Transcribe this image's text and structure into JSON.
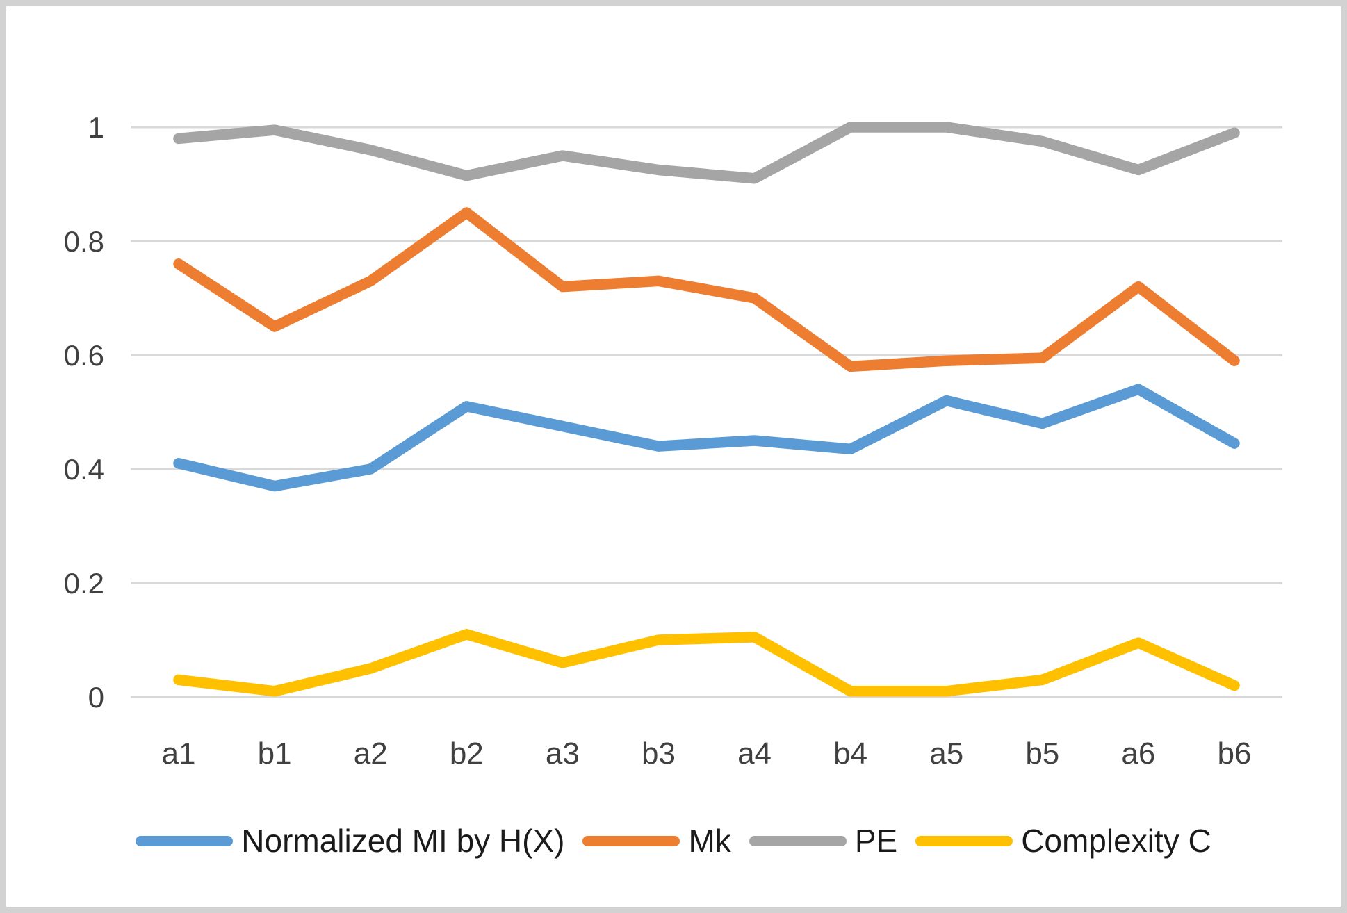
{
  "frame": {
    "border_color": "#d2d2d2",
    "background": "#ffffff"
  },
  "chart_data": {
    "type": "line",
    "title": "",
    "xlabel": "",
    "ylabel": "",
    "categories": [
      "a1",
      "b1",
      "a2",
      "b2",
      "a3",
      "b3",
      "a4",
      "b4",
      "a5",
      "b5",
      "a6",
      "b6"
    ],
    "series": [
      {
        "name": "Normalized MI by H(X)",
        "color": "#5B9BD5",
        "values": [
          0.41,
          0.37,
          0.4,
          0.51,
          0.475,
          0.44,
          0.45,
          0.435,
          0.52,
          0.48,
          0.54,
          0.445
        ]
      },
      {
        "name": "Mk",
        "color": "#ED7D31",
        "values": [
          0.76,
          0.65,
          0.73,
          0.85,
          0.72,
          0.73,
          0.7,
          0.58,
          0.59,
          0.595,
          0.72,
          0.59
        ]
      },
      {
        "name": "PE",
        "color": "#A5A5A5",
        "values": [
          0.98,
          0.995,
          0.96,
          0.915,
          0.95,
          0.925,
          0.91,
          1.0,
          1.0,
          0.975,
          0.925,
          0.99
        ]
      },
      {
        "name": "Complexity C",
        "color": "#FFC000",
        "values": [
          0.03,
          0.01,
          0.05,
          0.11,
          0.06,
          0.1,
          0.105,
          0.01,
          0.01,
          0.03,
          0.095,
          0.02
        ]
      }
    ],
    "ylim": [
      0,
      1
    ],
    "y_ticks": [
      0,
      0.2,
      0.4,
      0.6,
      0.8,
      1
    ],
    "y_tick_labels": [
      "0",
      "0.2",
      "0.4",
      "0.6",
      "0.8",
      "1"
    ],
    "grid": true,
    "grid_color": "#d9d9d9",
    "axis_label_color": "#404040",
    "legend_position": "bottom",
    "legend_text_color": "#1a1a1a"
  }
}
